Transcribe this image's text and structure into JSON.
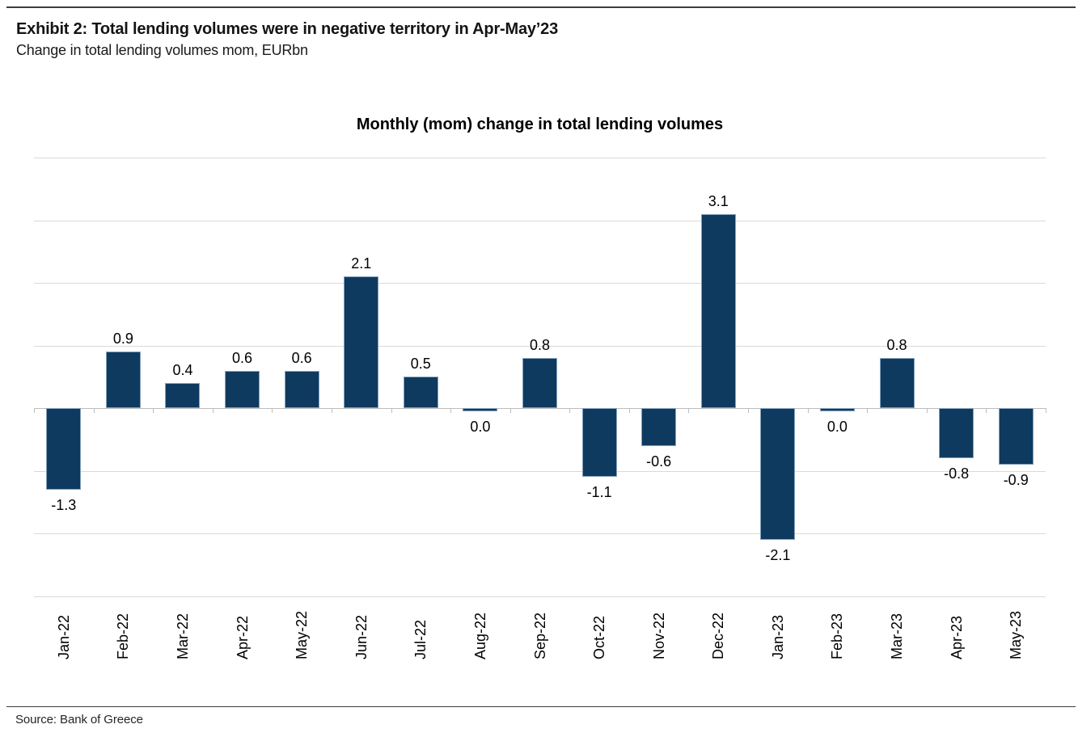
{
  "header": {
    "exhibit_title": "Exhibit 2: Total lending volumes were in negative territory in Apr-May’23",
    "subtitle": "Change in total lending volumes mom, EURbn"
  },
  "chart_data": {
    "type": "bar",
    "title": "Monthly (mom) change in total lending volumes",
    "xlabel": "",
    "ylabel": "",
    "categories": [
      "Jan-22",
      "Feb-22",
      "Mar-22",
      "Apr-22",
      "May-22",
      "Jun-22",
      "Jul-22",
      "Aug-22",
      "Sep-22",
      "Oct-22",
      "Nov-22",
      "Dec-22",
      "Jan-23",
      "Feb-23",
      "Mar-23",
      "Apr-23",
      "May-23"
    ],
    "values": [
      -1.3,
      0.9,
      0.4,
      0.6,
      0.6,
      2.1,
      0.5,
      0.0,
      0.8,
      -1.1,
      -0.6,
      3.1,
      -2.1,
      0.0,
      0.8,
      -0.8,
      -0.9
    ],
    "data_labels": [
      "-1.3",
      "0.9",
      "0.4",
      "0.6",
      "0.6",
      "2.1",
      "0.5",
      "0.0",
      "0.8",
      "-1.1",
      "-0.6",
      "3.1",
      "-2.1",
      "0.0",
      "0.8",
      "-0.8",
      "-0.9"
    ],
    "ylim": [
      -3,
      4
    ],
    "gridline_values": [
      4,
      3,
      2,
      1,
      0,
      -1,
      -2,
      -3
    ],
    "grid_on": true,
    "legend_position": "none",
    "colors": {
      "bar_fill": "#0f3a5f",
      "bar_border": "#84a1bd",
      "gridline": "#d9d9d9",
      "axis": "#bdbdbd",
      "label_text": "#000000"
    }
  },
  "footer": {
    "source": "Source: Bank of Greece"
  }
}
